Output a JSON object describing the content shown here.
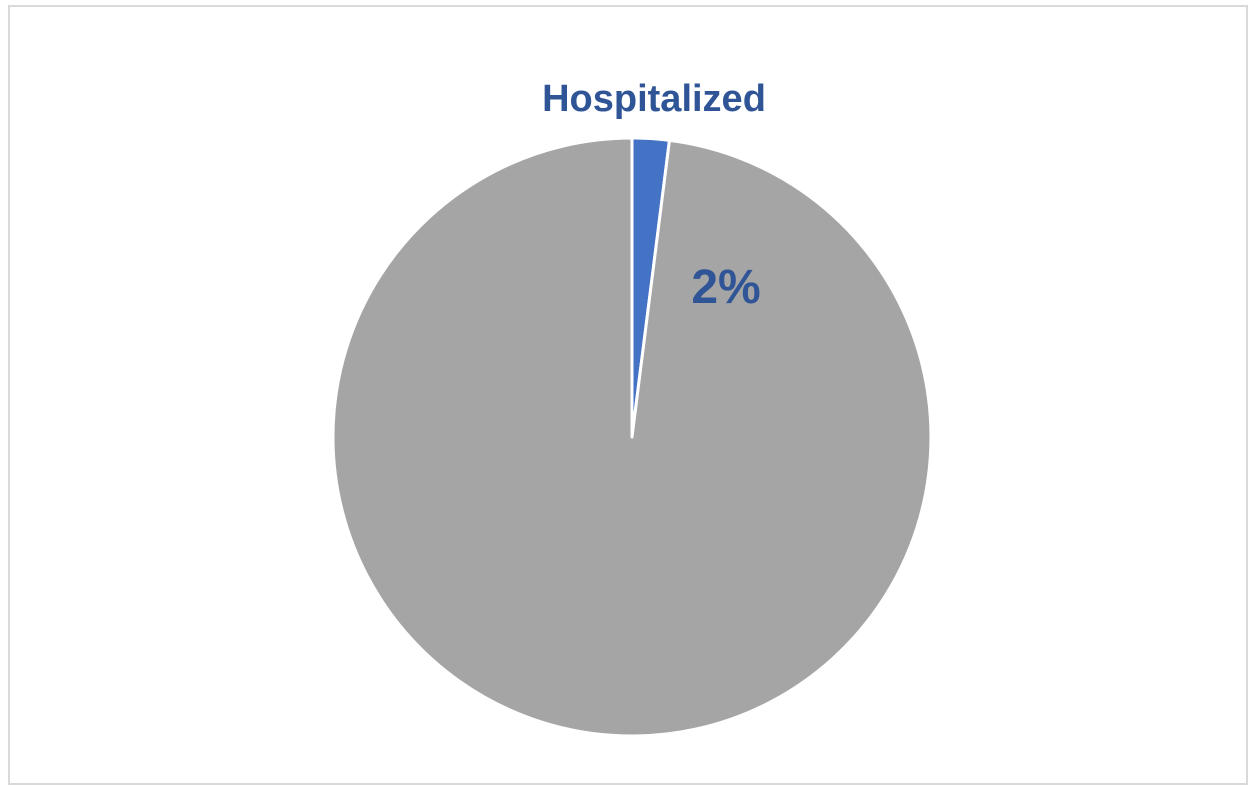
{
  "chart_data": {
    "type": "pie",
    "slices": [
      {
        "label": "Hospitalized",
        "value": 2,
        "display_value": "2%",
        "color": "#4472c4"
      },
      {
        "label": "",
        "value": 98,
        "color": "#a5a5a5"
      }
    ],
    "label_color": "#2f5597",
    "separator_color": "#ffffff",
    "start_angle_deg": 0,
    "direction": "clockwise"
  }
}
